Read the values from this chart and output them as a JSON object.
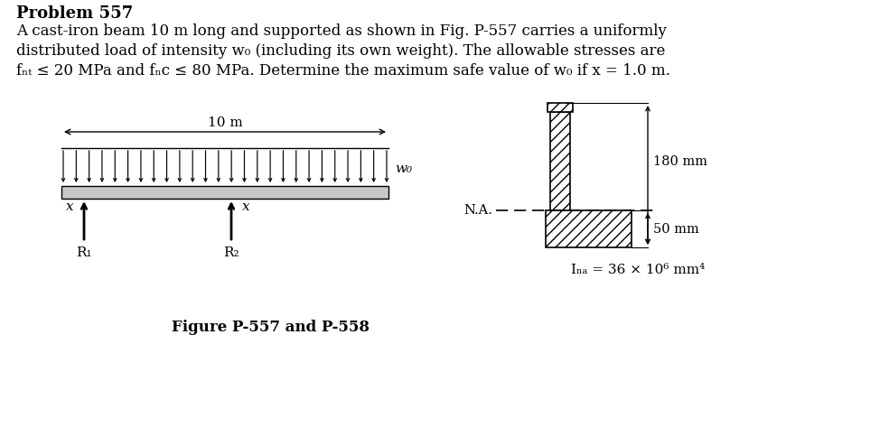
{
  "title_line1_bold": "Problem",
  "title_line1_normal": " 557",
  "body_lines": [
    "A cast-iron beam 10 m long and supported as shown in Fig. P-557 carries a uniformly",
    "distributed load of intensity w₀ (including its own weight). The allowable stresses are",
    "fₙₜ ≤ 20 MPa and fₙc ≤ 80 MPa. Determine the maximum safe value of w₀ if x = 1.0 m."
  ],
  "fig_caption": "Figure P-557 and P-558",
  "label_10m": "10 m",
  "label_wo": "w₀",
  "label_R1": "R₁",
  "label_R2": "R₂",
  "label_x": "x",
  "label_NA": "N.A.",
  "label_180mm": "180 mm",
  "label_50mm": "50 mm",
  "label_INA": "Iₙₐ = 36 × 10⁶ mm⁴",
  "bg_color": "#ffffff",
  "text_color": "#000000",
  "beam_fill": "#cccccc"
}
